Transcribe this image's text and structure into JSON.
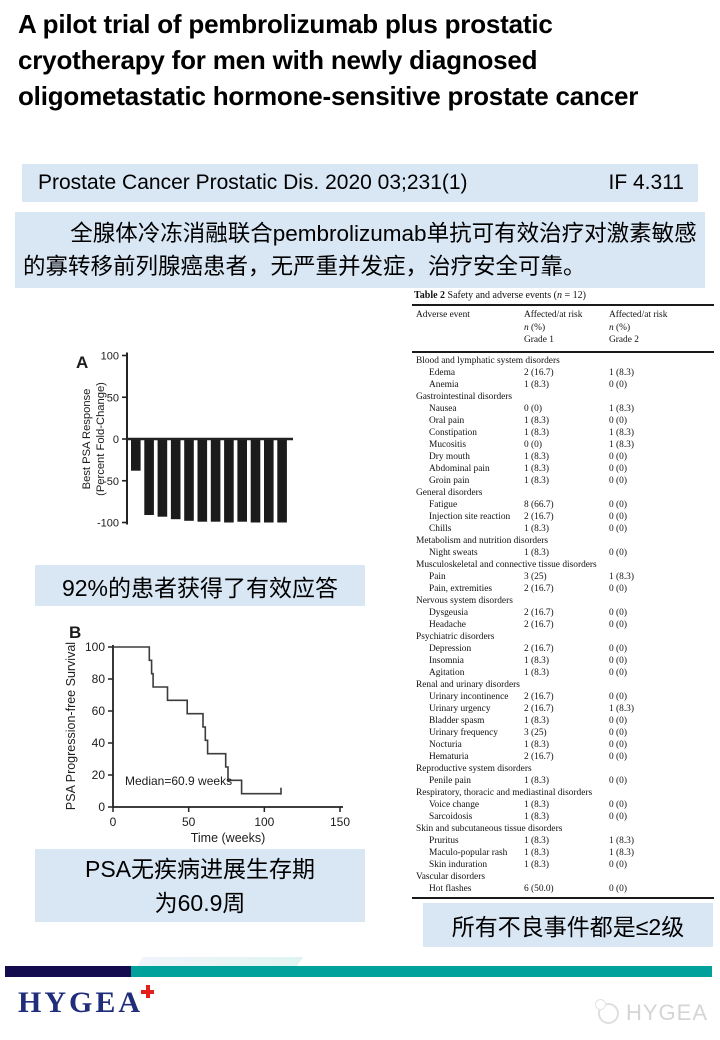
{
  "slide": {
    "title": "A pilot trial of pembrolizumab plus prostatic cryotherapy for men with newly diagnosed oligometastatic hormone-sensitive prostate cancer",
    "journal_bar": {
      "citation": "Prostate Cancer Prostatic Dis. 2020 03;231(1)",
      "impact_factor": "IF 4.311"
    },
    "summary": "全腺体冷冻消融联合pembrolizumab单抗可有效治疗对激素敏感的寡转移前列腺癌患者，无严重并发症，治疗安全可靠。",
    "captions": {
      "response": "92%的患者获得了有效应答",
      "survival_line1": "PSA无疾病进展生存期",
      "survival_line2": "为60.9周",
      "adverse": "所有不良事件都是≤2级"
    },
    "footer": {
      "logo_text": "HYGEA",
      "watermark_text": "HYGEA"
    },
    "colors": {
      "box_blue": "#d9e6f4",
      "footer_navy": "#140a4e",
      "footer_teal": "#00a19a",
      "logo_navy": "#1f2d7b",
      "logo_red": "#e3201b",
      "watermark_gray": "#d5d5d5"
    }
  },
  "chart_data": [
    {
      "panel": "A",
      "type": "bar",
      "subtype": "waterfall",
      "ylabel_lines": [
        "Best PSA Response",
        "(Percent Fold-Change)"
      ],
      "values": [
        -38,
        -91,
        -93,
        -96,
        -98,
        -99,
        -99,
        -100,
        -99,
        -100,
        -100,
        -100
      ],
      "yticks": [
        100,
        50,
        0,
        -50,
        -100
      ],
      "ylim": [
        -100,
        100
      ],
      "bar_color": "#1b1b1b"
    },
    {
      "panel": "B",
      "type": "line",
      "subtype": "kaplan-meier-step",
      "xlabel": "Time (weeks)",
      "ylabel": "PSA Progression-free Survival",
      "annotation": "Median=60.9 weeks",
      "xticks": [
        0,
        50,
        100,
        150
      ],
      "yticks": [
        0,
        20,
        40,
        60,
        80,
        100
      ],
      "xlim": [
        0,
        150
      ],
      "ylim": [
        0,
        100
      ],
      "step_points": [
        [
          0,
          100
        ],
        [
          24,
          100
        ],
        [
          24,
          91.7
        ],
        [
          25.5,
          91.7
        ],
        [
          25.5,
          83.3
        ],
        [
          26.5,
          83.3
        ],
        [
          26.5,
          75
        ],
        [
          36,
          75
        ],
        [
          36,
          66.7
        ],
        [
          49,
          66.7
        ],
        [
          49,
          58.3
        ],
        [
          59.5,
          58.3
        ],
        [
          59.5,
          50
        ],
        [
          61,
          50
        ],
        [
          61,
          41.7
        ],
        [
          62.5,
          41.7
        ],
        [
          62.5,
          33.3
        ],
        [
          74.5,
          33.3
        ],
        [
          74.5,
          25
        ],
        [
          76,
          25
        ],
        [
          76,
          16.7
        ],
        [
          85,
          16.7
        ],
        [
          85,
          8.3
        ],
        [
          111,
          8.3
        ]
      ],
      "censor": [
        111,
        8.3
      ],
      "line_color": "#3c3c3c"
    }
  ],
  "table": {
    "title_prefix": "Table 2",
    "title_rest": " Safety and adverse events (n = 12)",
    "columns": [
      [
        "Adverse event"
      ],
      [
        "Affected/at risk",
        "n (%)",
        "Grade 1"
      ],
      [
        "Affected/at risk",
        "n (%)",
        "Grade 2"
      ]
    ],
    "sections": [
      {
        "category": "Blood and lymphatic system disorders",
        "rows": [
          [
            "Edema",
            "2 (16.7)",
            "1 (8.3)"
          ],
          [
            "Anemia",
            "1 (8.3)",
            "0 (0)"
          ]
        ]
      },
      {
        "category": "Gastrointestinal disorders",
        "rows": [
          [
            "Nausea",
            "0 (0)",
            "1 (8.3)"
          ],
          [
            "Oral pain",
            "1 (8.3)",
            "0 (0)"
          ],
          [
            "Constipation",
            "1 (8.3)",
            "1 (8.3)"
          ],
          [
            "Mucositis",
            "0 (0)",
            "1 (8.3)"
          ],
          [
            "Dry mouth",
            "1 (8.3)",
            "0 (0)"
          ],
          [
            "Abdominal pain",
            "1 (8.3)",
            "0 (0)"
          ],
          [
            "Groin pain",
            "1 (8.3)",
            "0 (0)"
          ]
        ]
      },
      {
        "category": "General disorders",
        "rows": [
          [
            "Fatigue",
            "8 (66.7)",
            "0 (0)"
          ],
          [
            "Injection site reaction",
            "2 (16.7)",
            "0 (0)"
          ],
          [
            "Chills",
            "1 (8.3)",
            "0 (0)"
          ]
        ]
      },
      {
        "category": "Metabolism and nutrition disorders",
        "rows": [
          [
            "Night sweats",
            "1 (8.3)",
            "0 (0)"
          ]
        ]
      },
      {
        "category": "Musculoskeletal and connective tissue disorders",
        "rows": [
          [
            "Pain",
            "3 (25)",
            "1 (8.3)"
          ],
          [
            "Pain, extremities",
            "2 (16.7)",
            "0 (0)"
          ]
        ]
      },
      {
        "category": "Nervous system disorders",
        "rows": [
          [
            "Dysgeusia",
            "2 (16.7)",
            "0 (0)"
          ],
          [
            "Headache",
            "2 (16.7)",
            "0 (0)"
          ]
        ]
      },
      {
        "category": "Psychiatric disorders",
        "rows": [
          [
            "Depression",
            "2 (16.7)",
            "0 (0)"
          ],
          [
            "Insomnia",
            "1 (8.3)",
            "0 (0)"
          ],
          [
            "Agitation",
            "1 (8.3)",
            "0 (0)"
          ]
        ]
      },
      {
        "category": "Renal and urinary disorders",
        "rows": [
          [
            "Urinary incontinence",
            "2 (16.7)",
            "0 (0)"
          ],
          [
            "Urinary urgency",
            "2 (16.7)",
            "1 (8.3)"
          ],
          [
            "Bladder spasm",
            "1 (8.3)",
            "0 (0)"
          ],
          [
            "Urinary frequency",
            "3 (25)",
            "0 (0)"
          ],
          [
            "Nocturia",
            "1 (8.3)",
            "0 (0)"
          ],
          [
            "Hematuria",
            "2 (16.7)",
            "0 (0)"
          ]
        ]
      },
      {
        "category": "Reproductive system disorders",
        "rows": [
          [
            "Penile pain",
            "1 (8.3)",
            "0 (0)"
          ]
        ]
      },
      {
        "category": "Respiratory, thoracic and mediastinal disorders",
        "rows": [
          [
            "Voice change",
            "1 (8.3)",
            "0 (0)"
          ],
          [
            "Sarcoidosis",
            "1 (8.3)",
            "0 (0)"
          ]
        ]
      },
      {
        "category": "Skin and subcutaneous tissue disorders",
        "rows": [
          [
            "Pruritus",
            "1 (8.3)",
            "1 (8.3)"
          ],
          [
            "Maculo-popular rash",
            "1 (8.3)",
            "1 (8.3)"
          ],
          [
            "Skin induration",
            "1 (8.3)",
            "0 (0)"
          ]
        ]
      },
      {
        "category": "Vascular disorders",
        "rows": [
          [
            "Hot flashes",
            "6 (50.0)",
            "0 (0)"
          ]
        ]
      }
    ]
  }
}
